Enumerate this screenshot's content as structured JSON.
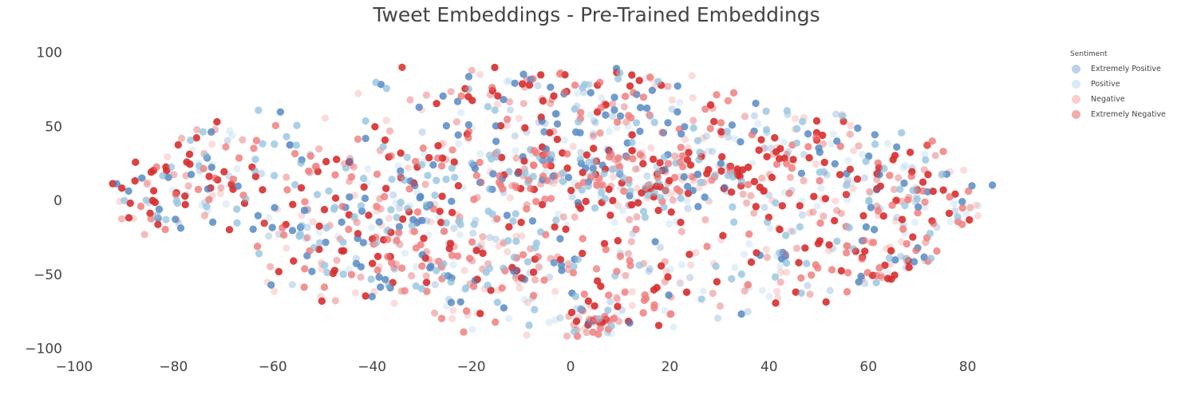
{
  "chart_data": {
    "type": "scatter",
    "title": "Tweet Embeddings - Pre-Trained Embeddings",
    "xlabel": "",
    "ylabel": "",
    "xlim": [
      -100,
      85
    ],
    "ylim": [
      -100,
      100
    ],
    "x_ticks": [
      -100,
      -80,
      -60,
      -40,
      -20,
      0,
      20,
      40,
      60,
      80
    ],
    "y_ticks": [
      100,
      50,
      0,
      -50,
      -100
    ],
    "x_tick_labels": [
      "−100",
      "−80",
      "−60",
      "−40",
      "−20",
      "0",
      "20",
      "40",
      "60",
      "80"
    ],
    "y_tick_labels": [
      "100",
      "50",
      "0",
      "−50",
      "−100"
    ],
    "grid": false,
    "legend": {
      "title": "Sentiment",
      "position": "top-right",
      "entries": [
        "Extremely Positive",
        "Positive",
        "Negative",
        "Extremely Negative"
      ]
    },
    "series": [
      {
        "name": "Extremely Positive",
        "color": "#5b8cc4"
      },
      {
        "name": "Positive",
        "color": "#9ecae1"
      },
      {
        "name": "Negative",
        "color": "#f08080"
      },
      {
        "name": "Extremely Negative",
        "color": "#d93030"
      }
    ]
  }
}
